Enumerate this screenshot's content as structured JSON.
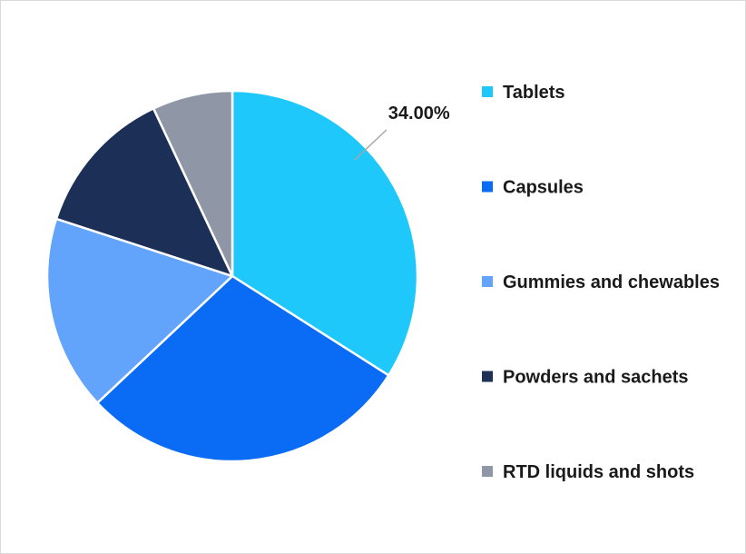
{
  "chart_data": {
    "type": "pie",
    "categories": [
      "Tablets",
      "Capsules",
      "Gummies and chewables",
      "Powders and sachets",
      "RTD liquids and shots"
    ],
    "values": [
      34.0,
      29.0,
      17.0,
      13.0,
      7.0
    ],
    "colors": [
      "#1ec8fa",
      "#0a6cf5",
      "#62a3fb",
      "#1c2f57",
      "#8f97a6"
    ],
    "data_labels": [
      "34.00%",
      "",
      "",
      "",
      ""
    ],
    "start_angle_deg": 0,
    "direction": "clockwise",
    "legend_position": "right",
    "title": ""
  }
}
